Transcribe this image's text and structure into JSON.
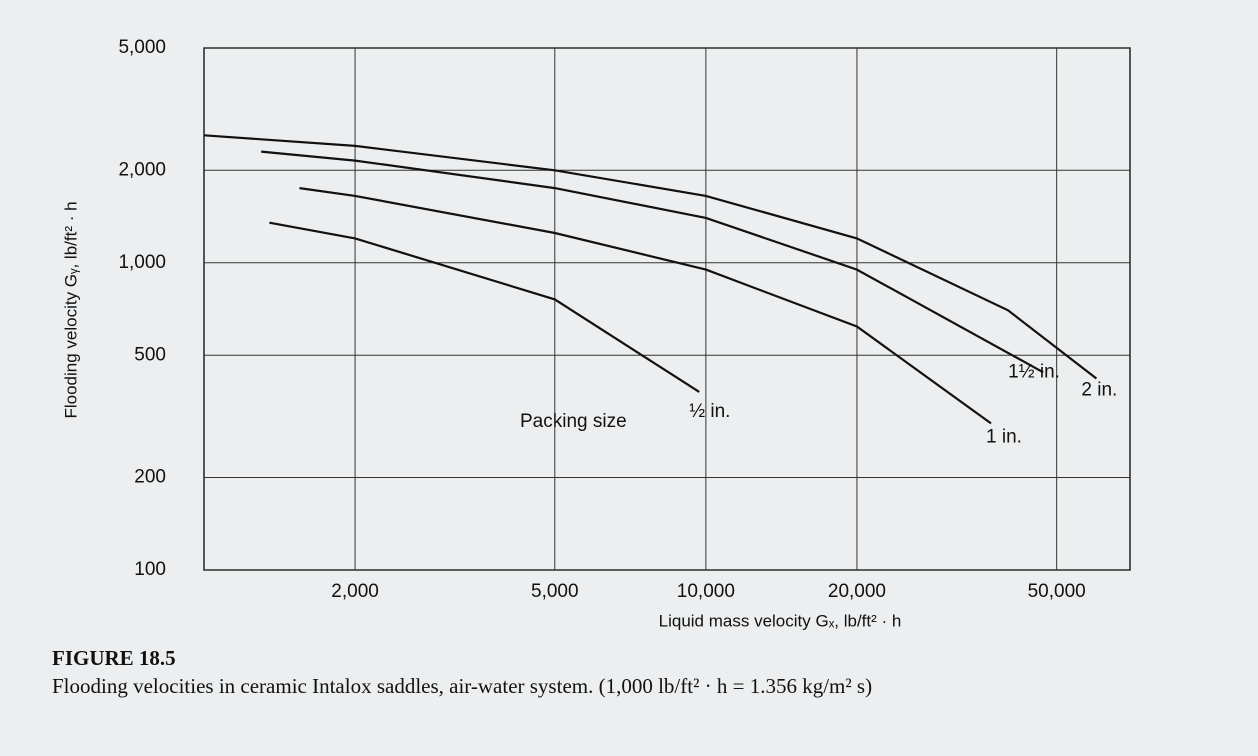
{
  "chart_data": {
    "type": "line",
    "log_x": true,
    "log_y": true,
    "grid": true,
    "figure_label": "FIGURE 18.5",
    "caption": "Flooding velocities in ceramic Intalox saddles, air-water system. (1,000 lb/ft² · h = 1.356 kg/m² s)",
    "xlabel": "Liquid mass velocity Gₓ, lb/ft² · h",
    "ylabel": "Flooding velocity Gᵧ, lb/ft² · h",
    "annotation": "Packing size",
    "xlim": [
      1000,
      70000
    ],
    "ylim": [
      100,
      5000
    ],
    "xticks": [
      {
        "value": 2000,
        "label": "2,000"
      },
      {
        "value": 5000,
        "label": "5,000"
      },
      {
        "value": 10000,
        "label": "10,000"
      },
      {
        "value": 20000,
        "label": "20,000"
      },
      {
        "value": 50000,
        "label": "50,000"
      }
    ],
    "yticks": [
      100,
      200,
      500,
      {
        "value": 1000,
        "label": "1,000"
      },
      {
        "value": 2000,
        "label": "2,000"
      },
      {
        "value": 5000,
        "label": "5,000"
      }
    ],
    "series": [
      {
        "name": "2 in.",
        "color": "#111111",
        "x": [
          1000,
          2000,
          5000,
          10000,
          20000,
          40000,
          60000
        ],
        "values": [
          2600,
          2400,
          2000,
          1650,
          1200,
          700,
          420
        ]
      },
      {
        "name": "1½ in.",
        "color": "#111111",
        "x": [
          1300,
          2000,
          5000,
          10000,
          20000,
          47000
        ],
        "values": [
          2300,
          2150,
          1750,
          1400,
          950,
          440
        ]
      },
      {
        "name": "1 in.",
        "color": "#111111",
        "x": [
          1550,
          2000,
          5000,
          10000,
          20000,
          37000
        ],
        "values": [
          1750,
          1650,
          1250,
          950,
          620,
          300
        ]
      },
      {
        "name": "½ in.",
        "color": "#111111",
        "x": [
          1350,
          2000,
          5000,
          9700
        ],
        "values": [
          1350,
          1200,
          760,
          380
        ]
      }
    ]
  }
}
